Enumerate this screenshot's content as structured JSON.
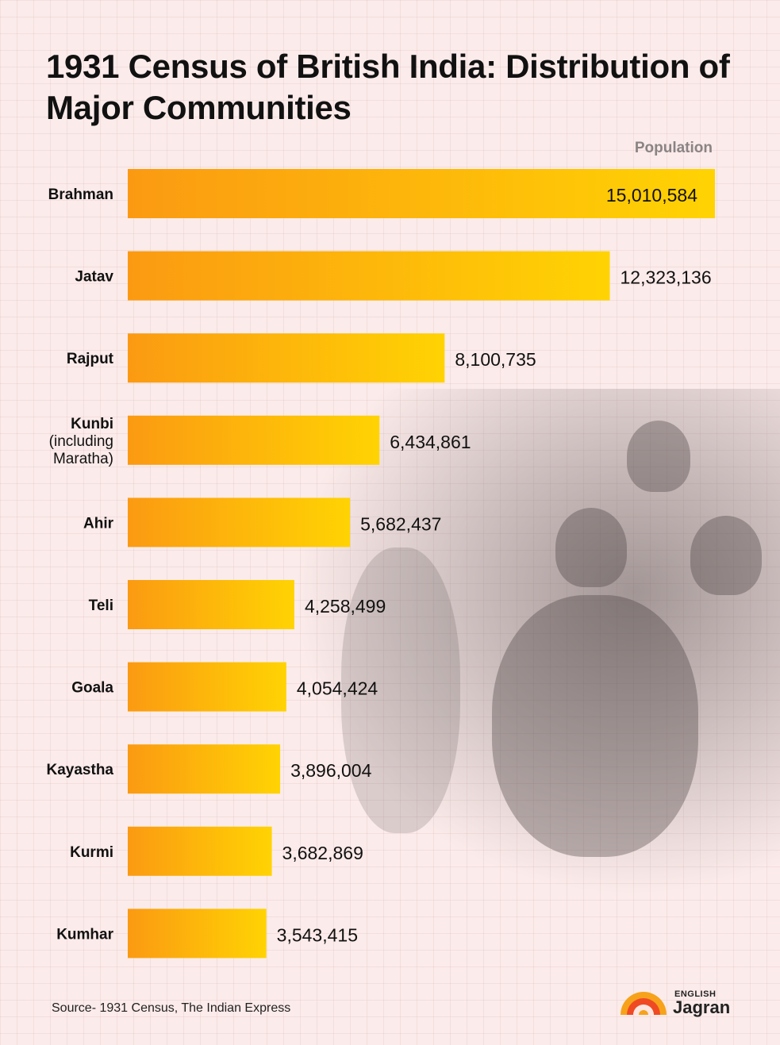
{
  "title": "1931 Census of British India: Distribution of Major Communities",
  "source": "Source- 1931 Census, The Indian Express",
  "logo": {
    "small": "ENGLISH",
    "big": "Jagran"
  },
  "colors": {
    "bar_start": "#fb9a12",
    "bar_end": "#ffd303",
    "background": "#fbebea",
    "text": "#111111"
  },
  "chart_data": {
    "type": "bar",
    "orientation": "horizontal",
    "title": "1931 Census of British India: Distribution of Major Communities",
    "value_label": "Population",
    "xlim": [
      0,
      15010584
    ],
    "categories": [
      [
        "Brahman"
      ],
      [
        "Jatav"
      ],
      [
        "Rajput"
      ],
      [
        "Kunbi",
        "(including",
        "Maratha)"
      ],
      [
        "Ahir"
      ],
      [
        "Teli"
      ],
      [
        "Goala"
      ],
      [
        "Kayastha"
      ],
      [
        "Kurmi"
      ],
      [
        "Kumhar"
      ]
    ],
    "values": [
      15010584,
      12323136,
      8100735,
      6434861,
      5682437,
      4258499,
      4054424,
      3896004,
      3682869,
      3543415
    ],
    "value_labels": [
      "15,010,584",
      "12,323,136",
      "8,100,735",
      "6,434,861",
      "5,682,437",
      "4,258,499",
      "4,054,424",
      "3,896,004",
      "3,682,869",
      "3,543,415"
    ]
  }
}
